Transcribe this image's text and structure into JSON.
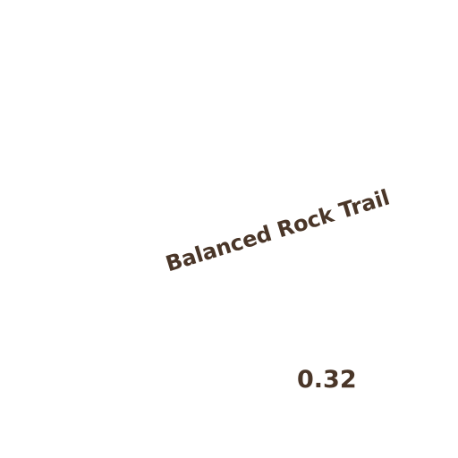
{
  "map": {
    "trail_label": "Balanced Rock Trail",
    "distance_label": "0.32"
  },
  "colors": {
    "label_text": "#4a3628",
    "background": "#ffffff"
  }
}
